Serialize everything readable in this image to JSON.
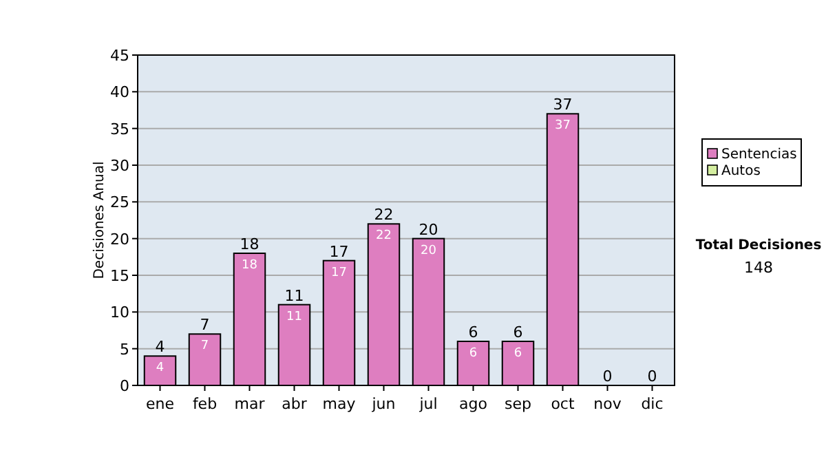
{
  "chart_data": {
    "type": "bar",
    "stacked": true,
    "ylabel": "Decisiones Anual",
    "categories": [
      "ene",
      "feb",
      "mar",
      "abr",
      "may",
      "jun",
      "jul",
      "ago",
      "sep",
      "oct",
      "nov",
      "dic"
    ],
    "series": [
      {
        "name": "Sentencias",
        "color": "#de7ec0",
        "values": [
          4,
          7,
          18,
          11,
          17,
          22,
          20,
          6,
          6,
          37,
          0,
          0
        ],
        "value_labels": [
          "4",
          "7",
          "18",
          "11",
          "17",
          "22",
          "20",
          "6",
          "6",
          "37",
          null,
          null
        ]
      },
      {
        "name": "Autos",
        "color": "#d4eea0",
        "values": [
          0,
          0,
          0,
          0,
          0,
          0,
          0,
          0,
          0,
          0,
          0,
          0
        ]
      }
    ],
    "totals": [
      "4",
      "7",
      "18",
      "11",
      "17",
      "22",
      "20",
      "6",
      "6",
      "37",
      "0",
      "0"
    ],
    "ylim": [
      0,
      45
    ],
    "yticks": [
      0,
      5,
      10,
      15,
      20,
      25,
      30,
      35,
      40,
      45
    ],
    "grid": "y",
    "legend": "right",
    "annotations": [
      "Total Decisiones",
      "148"
    ]
  }
}
